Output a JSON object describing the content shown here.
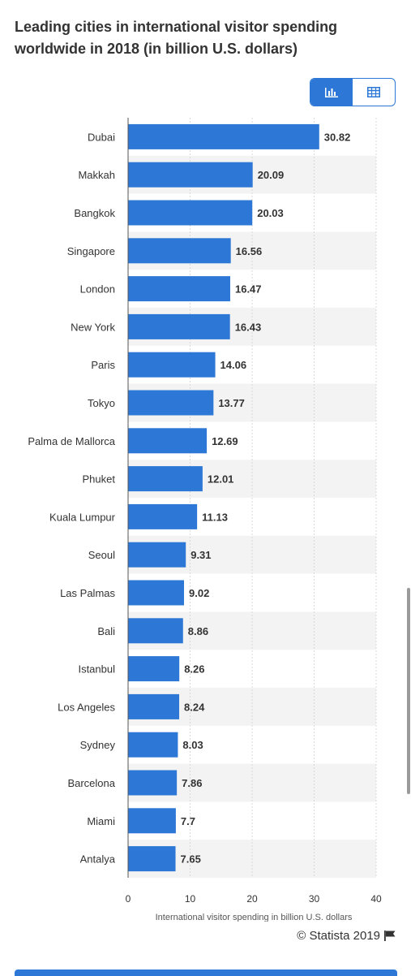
{
  "title": "Leading cities in international visitor spending worldwide in 2018 (in billion U.S. dollars)",
  "toggle": {
    "chart_icon": "bar-chart-icon",
    "table_icon": "table-icon"
  },
  "copyright": {
    "text": "© Statista 2019",
    "icon": "flag-icon"
  },
  "colors": {
    "bar": "#2d78d6",
    "accent": "#2d78d6",
    "stripe": "#f3f3f3",
    "grid": "#d9d9d9"
  },
  "chart_data": {
    "type": "bar",
    "orientation": "horizontal",
    "categories": [
      "Dubai",
      "Makkah",
      "Bangkok",
      "Singapore",
      "London",
      "New York",
      "Paris",
      "Tokyo",
      "Palma de Mallorca",
      "Phuket",
      "Kuala Lumpur",
      "Seoul",
      "Las Palmas",
      "Bali",
      "Istanbul",
      "Los Angeles",
      "Sydney",
      "Barcelona",
      "Miami",
      "Antalya"
    ],
    "values": [
      30.82,
      20.09,
      20.03,
      16.56,
      16.47,
      16.43,
      14.06,
      13.77,
      12.69,
      12.01,
      11.13,
      9.31,
      9.02,
      8.86,
      8.26,
      8.24,
      8.03,
      7.86,
      7.7,
      7.65
    ],
    "value_labels": [
      "30.82",
      "20.09",
      "20.03",
      "16.56",
      "16.47",
      "16.43",
      "14.06",
      "13.77",
      "12.69",
      "12.01",
      "11.13",
      "9.31",
      "9.02",
      "8.86",
      "8.26",
      "8.24",
      "8.03",
      "7.86",
      "7.7",
      "7.65"
    ],
    "xticks": [
      0,
      10,
      20,
      30,
      40
    ],
    "xlim": [
      0,
      40
    ],
    "xlabel": "International visitor spending in billion U.S. dollars",
    "grid": true
  }
}
